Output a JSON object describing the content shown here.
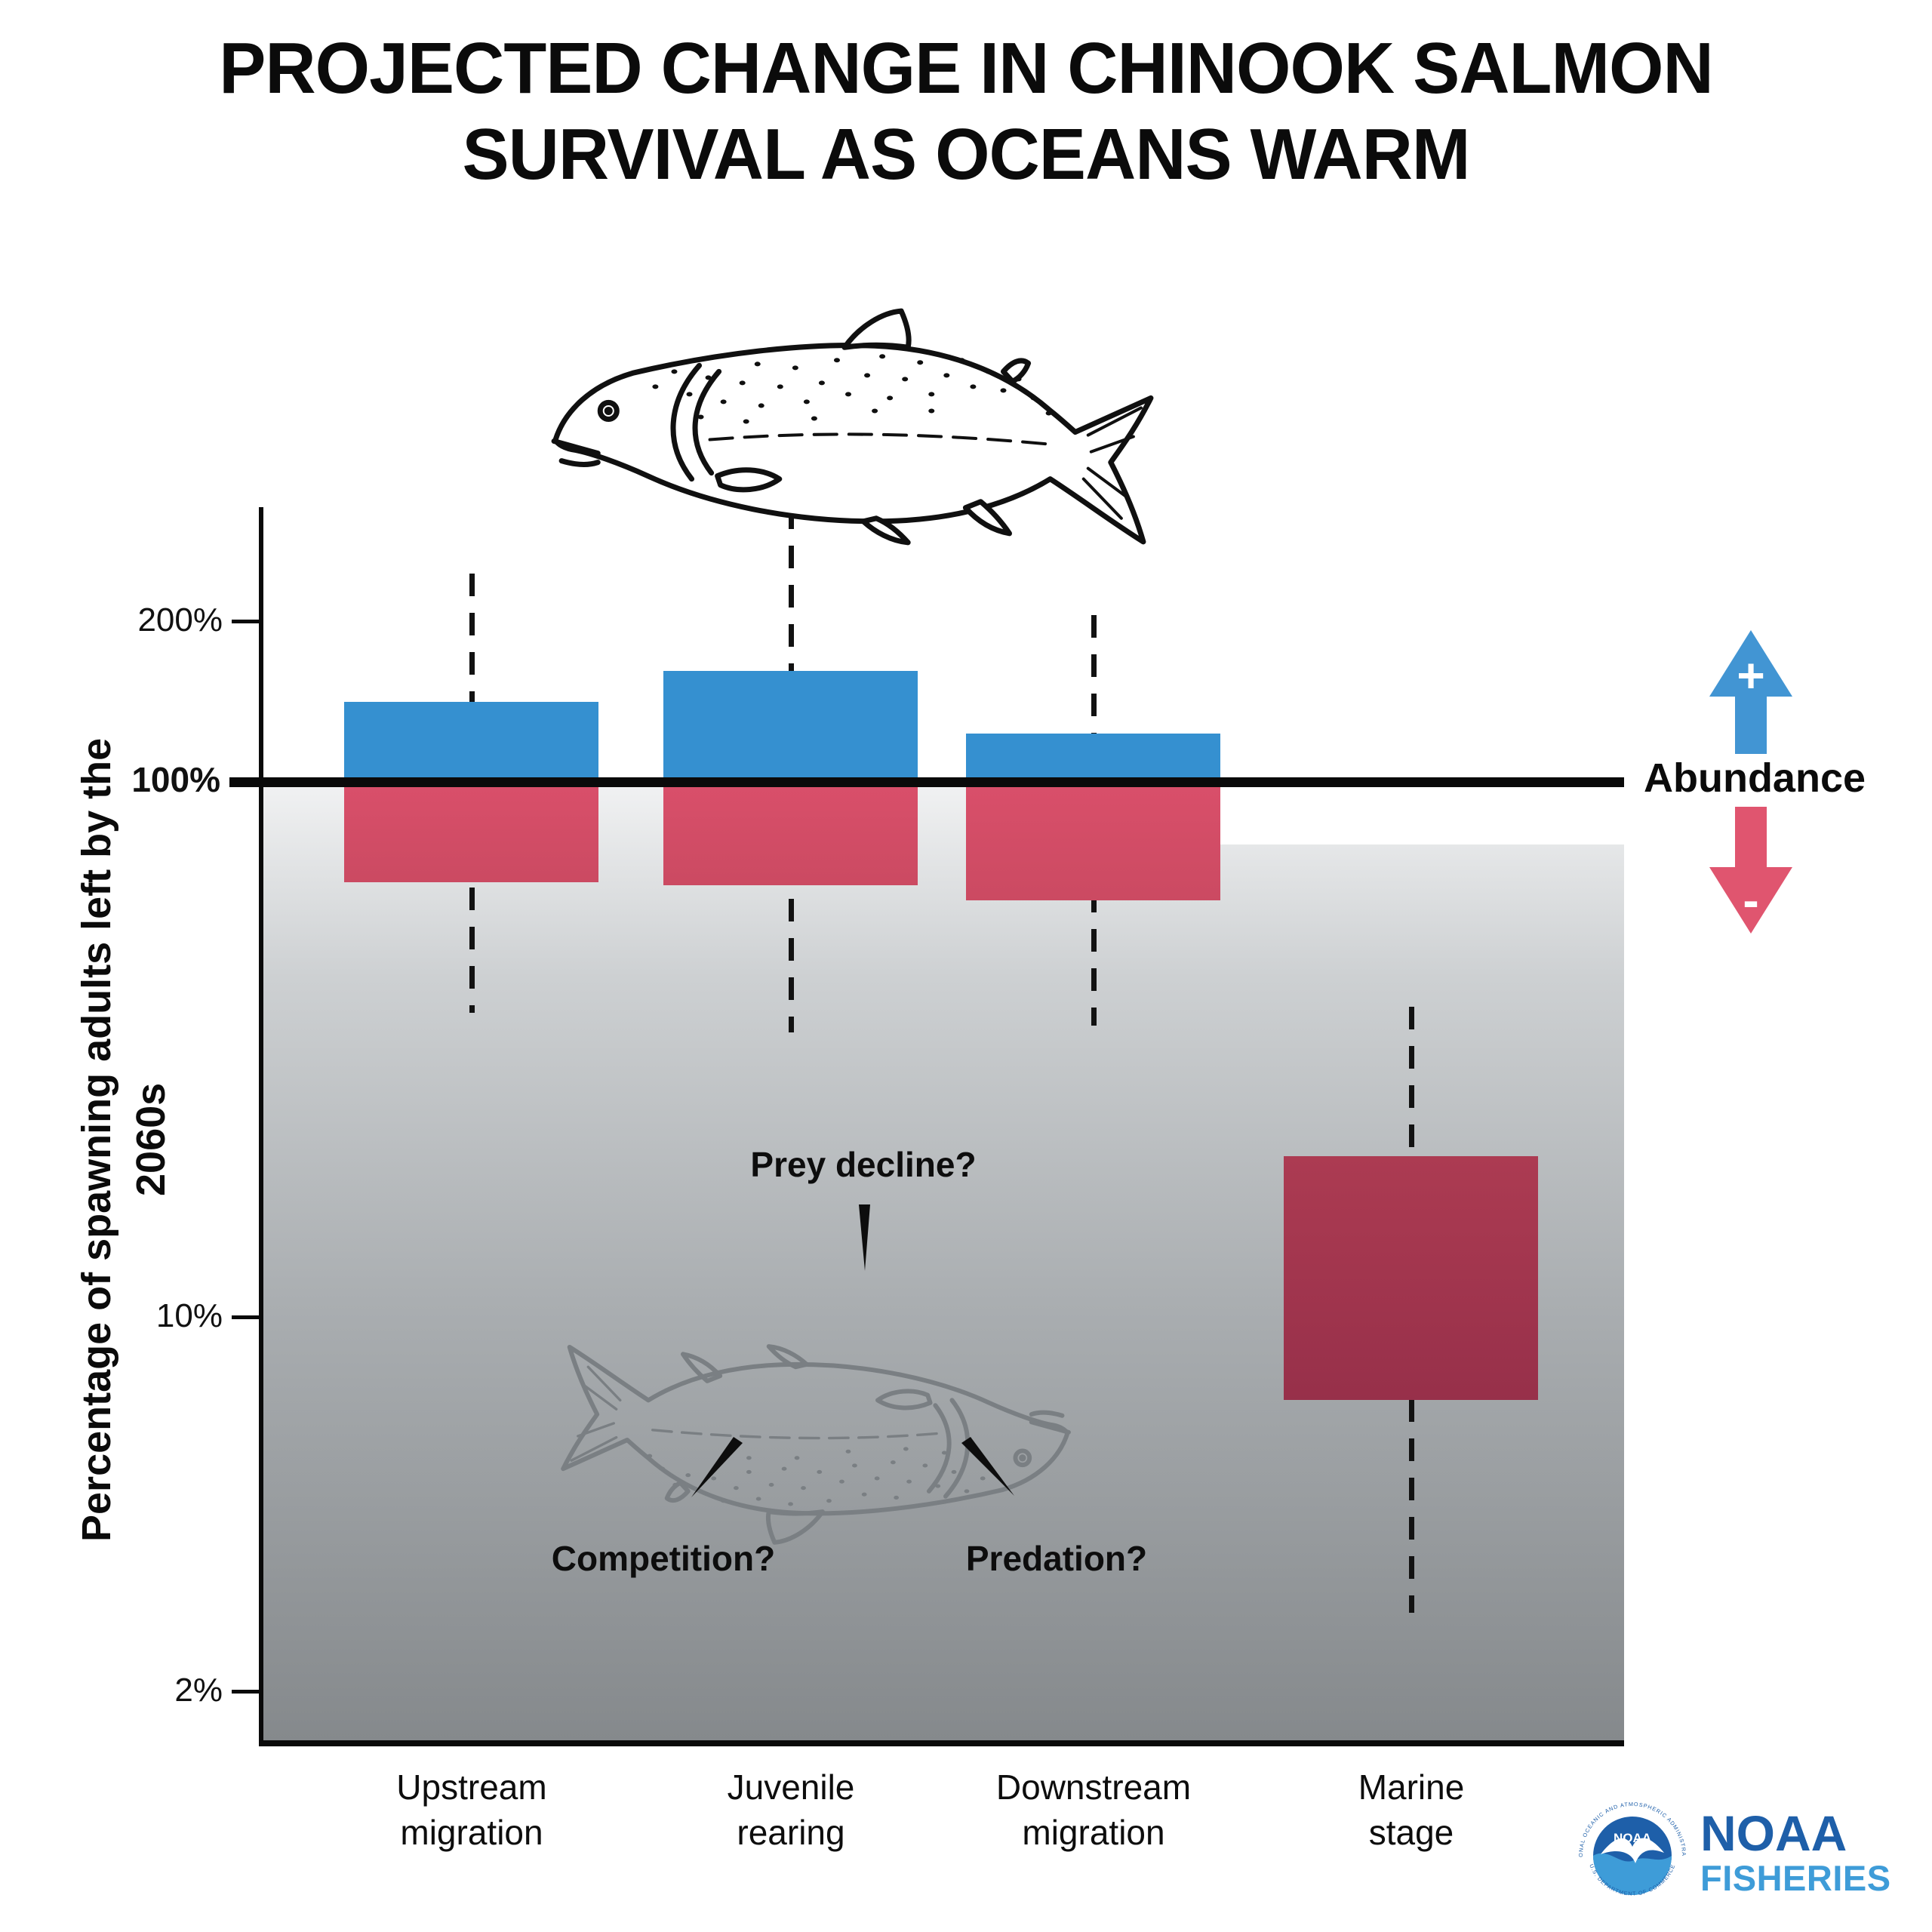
{
  "title": {
    "line1": "PROJECTED CHANGE IN CHINOOK SALMON",
    "line2": "SURVIVAL AS OCEANS WARM"
  },
  "y_axis": {
    "label": "Percentage of spawning adults left by the 2060s",
    "ticks": [
      {
        "label": "200%",
        "value": 200,
        "bold": false
      },
      {
        "label": "100%",
        "value": 100,
        "bold": true
      },
      {
        "label": "10%",
        "value": 10,
        "bold": false
      },
      {
        "label": "2%",
        "value": 2,
        "bold": false
      }
    ]
  },
  "reference_line": {
    "value": 100,
    "label": "Abundance",
    "plus_symbol": "+",
    "minus_symbol": "-"
  },
  "annotations": {
    "prey_decline": "Prey decline?",
    "competition": "Competition?",
    "predation": "Predation?"
  },
  "stages": [
    {
      "line1": "Upstream",
      "line2": "migration"
    },
    {
      "line1": "Juvenile",
      "line2": "rearing"
    },
    {
      "line1": "Downstream",
      "line2": "migration"
    },
    {
      "line1": "Marine",
      "line2": "stage"
    }
  ],
  "chart_data": {
    "type": "box",
    "title": "Projected change in Chinook salmon survival as oceans warm",
    "categories": [
      "Upstream migration",
      "Juvenile rearing",
      "Downstream migration",
      "Marine stage"
    ],
    "ylabel": "Percentage of spawning adults left by the 2060s",
    "yscale": "log",
    "ytick_labels": [
      "200%",
      "100%",
      "10%",
      "2%"
    ],
    "baseline_pct": 100,
    "series": [
      {
        "name": "Upstream migration",
        "box_high_pct": 141,
        "box_low_pct": 65,
        "whisker_high_pct": 245,
        "whisker_low_pct": 37
      },
      {
        "name": "Juvenile rearing",
        "box_high_pct": 161,
        "box_low_pct": 64,
        "whisker_high_pct": 327,
        "whisker_low_pct": 34
      },
      {
        "name": "Downstream migration",
        "box_high_pct": 123,
        "box_low_pct": 60,
        "whisker_high_pct": 205,
        "whisker_low_pct": 35
      },
      {
        "name": "Marine stage",
        "box_high_pct": 20,
        "box_low_pct": 7,
        "whisker_high_pct": 38,
        "whisker_low_pct": 2.8
      }
    ],
    "legend": {
      "up": "+ Abundance",
      "down": "- Abundance"
    }
  },
  "colors": {
    "blue": "#3590D0",
    "red_top": "#D94F6A",
    "red_bottom": "#CB4A62",
    "marine_red_top": "#AC3B52",
    "marine_red_bottom": "#97304A",
    "arrow_up": "#4295D3",
    "arrow_down": "#E0556F",
    "line": "#0A0A0A",
    "gradient_top": "#F0F1F2",
    "gradient_bottom": "#85898C",
    "noaa_dark_blue": "#1E5FA9",
    "noaa_light_blue": "#3E9CD8"
  },
  "logo": {
    "seal_word": "NOAA",
    "wordmark_line1": "NOAA",
    "wordmark_line2": "FISHERIES",
    "seal_ring_top": "NATIONAL OCEANIC AND ATMOSPHERIC ADMINISTRATION",
    "seal_ring_bottom": "U.S. DEPARTMENT OF COMMERCE"
  }
}
